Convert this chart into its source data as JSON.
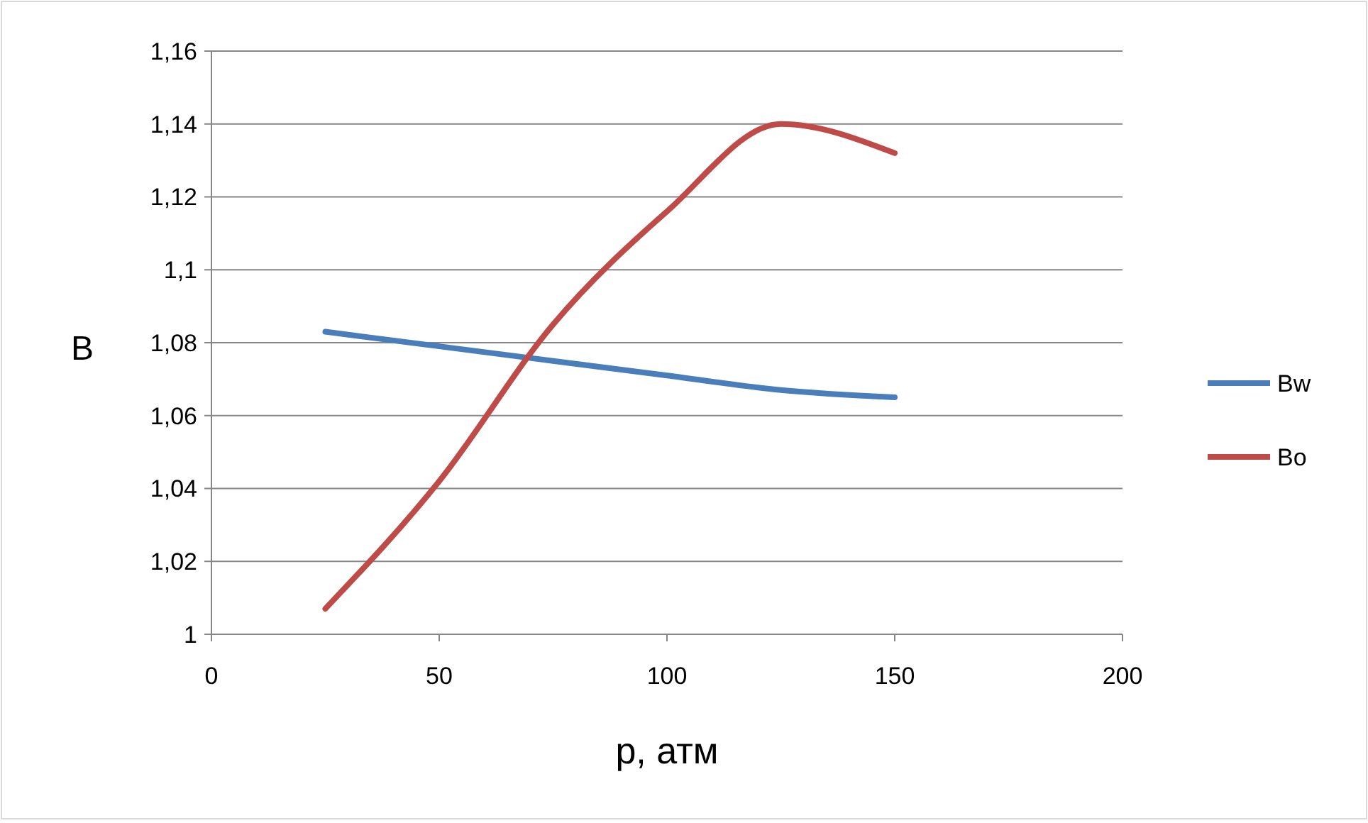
{
  "chart_data": {
    "type": "line",
    "xlabel": "p, атм",
    "ylabel": "B",
    "x": [
      25,
      50,
      75,
      100,
      125,
      150
    ],
    "series": [
      {
        "name": "Bw",
        "color": "#4a7ebb",
        "values": [
          1.083,
          1.079,
          1.075,
          1.071,
          1.067,
          1.065
        ]
      },
      {
        "name": "Bo",
        "color": "#be4b48",
        "values": [
          1.007,
          1.042,
          1.085,
          1.116,
          1.14,
          1.132
        ]
      }
    ],
    "xlim": [
      0,
      200
    ],
    "xticks": [
      0,
      50,
      100,
      150,
      200
    ],
    "ylim": [
      1,
      1.16
    ],
    "yticks": [
      {
        "value": 1,
        "label": "1"
      },
      {
        "value": 1.02,
        "label": "1,02"
      },
      {
        "value": 1.04,
        "label": "1,04"
      },
      {
        "value": 1.06,
        "label": "1,06"
      },
      {
        "value": 1.08,
        "label": "1,08"
      },
      {
        "value": 1.1,
        "label": "1,1"
      },
      {
        "value": 1.12,
        "label": "1,12"
      },
      {
        "value": 1.14,
        "label": "1,14"
      },
      {
        "value": 1.16,
        "label": "1,16"
      }
    ],
    "grid": "y",
    "legend": "right",
    "marker": "none",
    "line_style": "solid"
  }
}
